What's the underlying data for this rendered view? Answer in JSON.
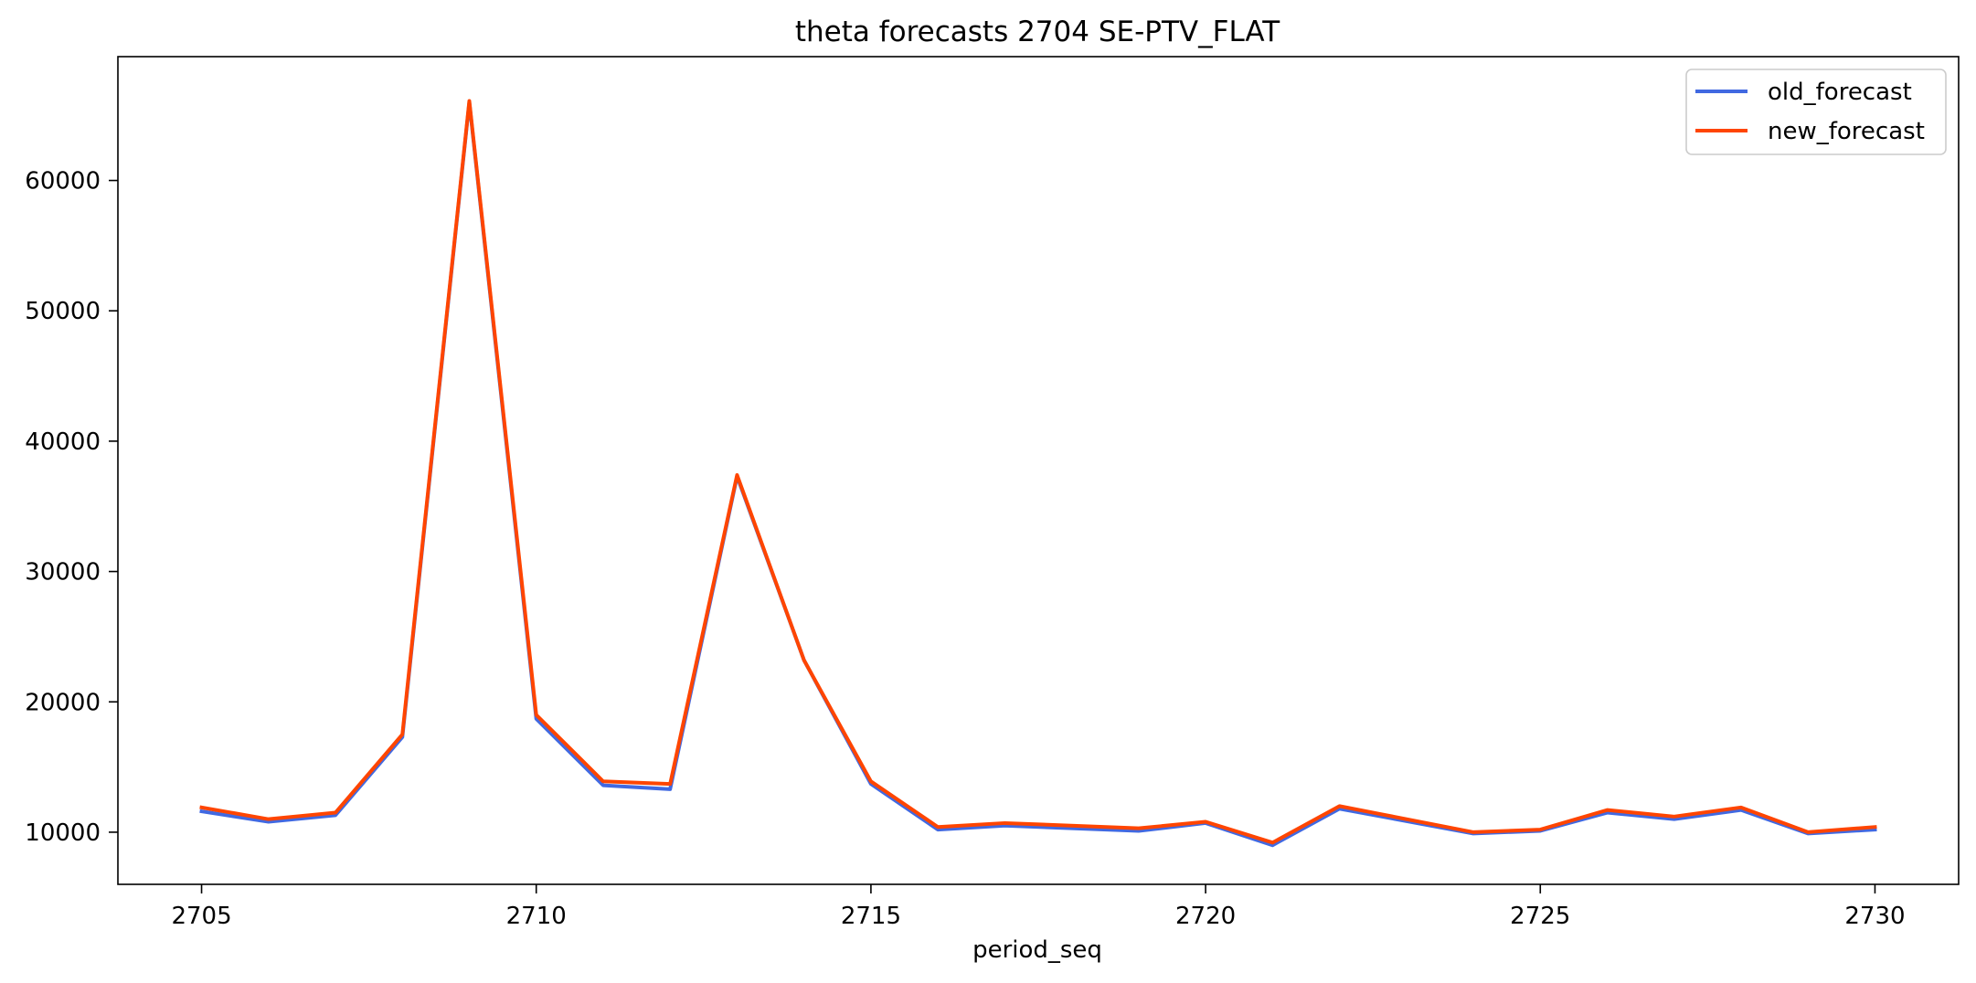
{
  "chart_data": {
    "type": "line",
    "title": "theta forecasts 2704 SE-PTV_FLAT",
    "xlabel": "period_seq",
    "ylabel": "",
    "x": [
      2705,
      2706,
      2707,
      2708,
      2709,
      2710,
      2711,
      2712,
      2713,
      2714,
      2715,
      2716,
      2717,
      2719,
      2720,
      2721,
      2722,
      2724,
      2725,
      2726,
      2727,
      2728,
      2729,
      2730
    ],
    "xlim": [
      2703.75,
      2731.25
    ],
    "ylim": [
      6000,
      69500
    ],
    "xticks": [
      "2705",
      "2710",
      "2715",
      "2720",
      "2725",
      "2730"
    ],
    "yticks": [
      "10000",
      "20000",
      "30000",
      "40000",
      "50000",
      "60000"
    ],
    "grid": false,
    "legend_position": "top-right",
    "series": [
      {
        "name": "old_forecast",
        "color": "#4169e1",
        "values": [
          11600,
          10800,
          11300,
          17300,
          66000,
          18700,
          13600,
          13300,
          37300,
          23200,
          13700,
          10200,
          10500,
          10100,
          10700,
          9000,
          11800,
          9900,
          10100,
          11500,
          11000,
          11700,
          9900,
          10200
        ]
      },
      {
        "name": "new_forecast",
        "color": "#ff4500",
        "values": [
          11900,
          11000,
          11500,
          17500,
          66100,
          19000,
          13900,
          13700,
          37400,
          23200,
          13900,
          10400,
          10700,
          10300,
          10800,
          9200,
          12000,
          10000,
          10200,
          11700,
          11200,
          11900,
          10000,
          10400
        ]
      }
    ]
  }
}
